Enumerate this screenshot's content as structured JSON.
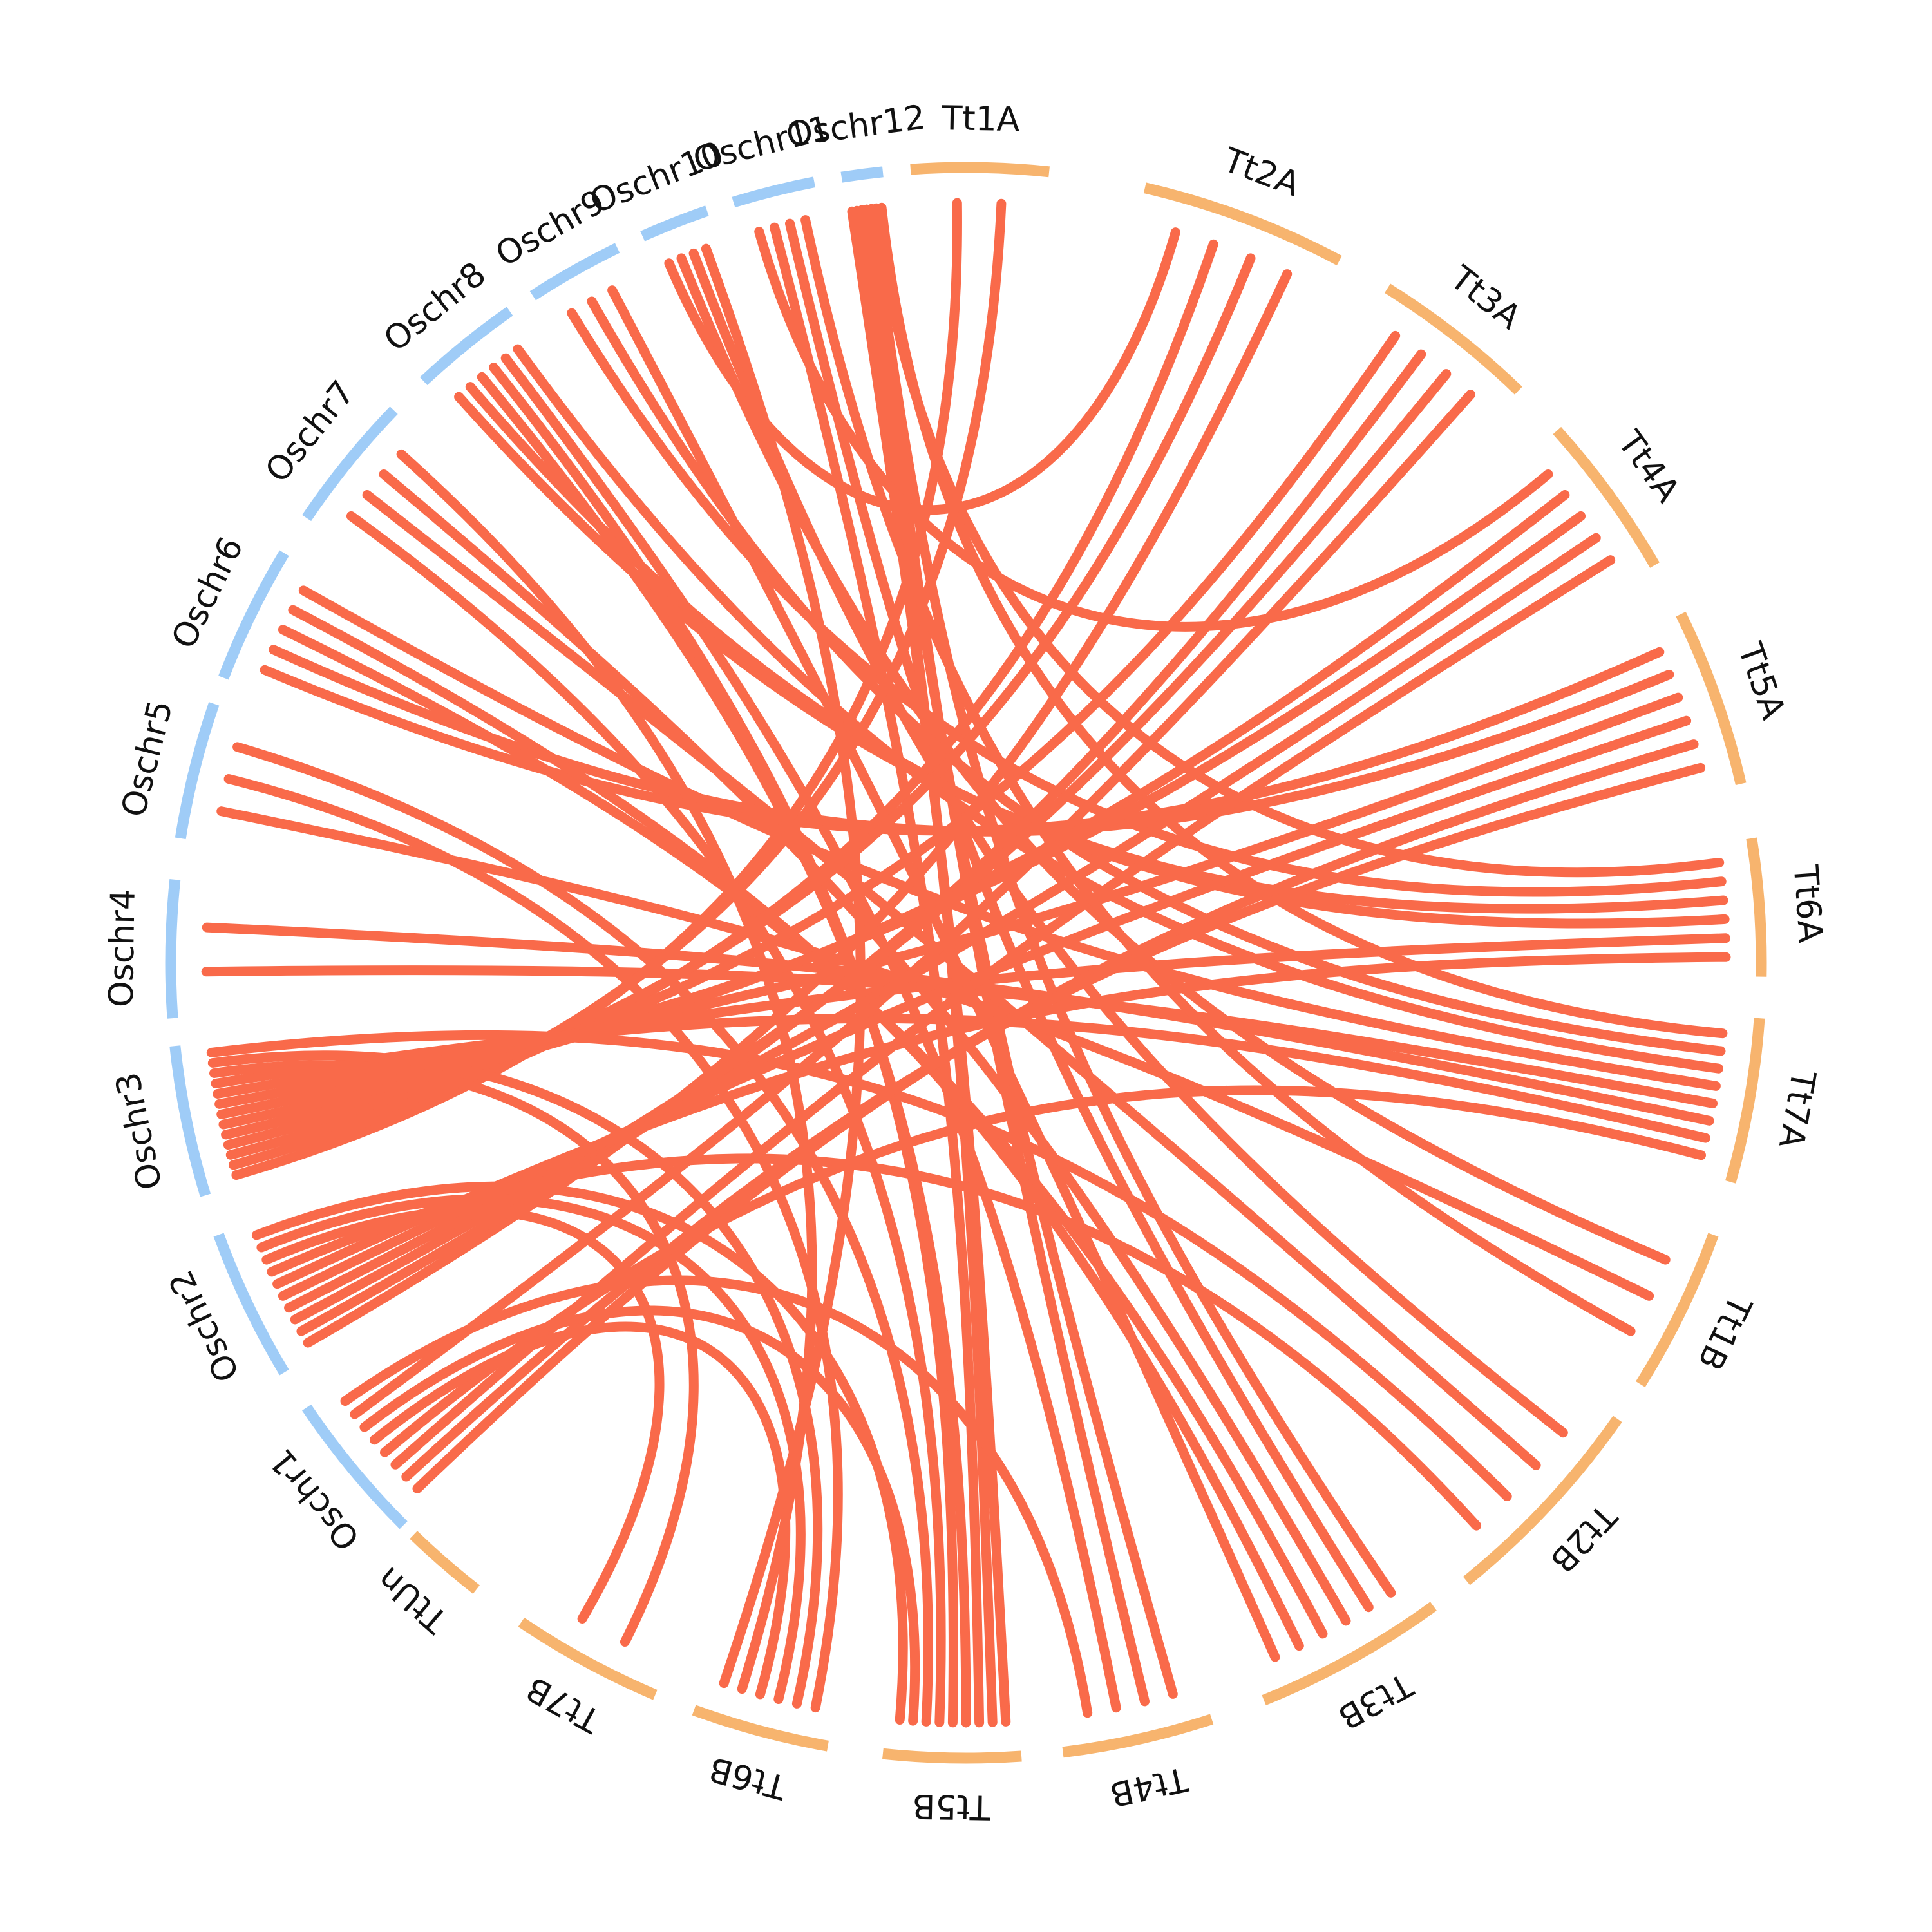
{
  "chart_data": {
    "type": "circos",
    "colors": {
      "rice": "#9fccf7",
      "wheat": "#f7b46e",
      "link": "#f96a4a",
      "label": "#111111"
    },
    "segments": [
      {
        "id": "Tt1A",
        "label": "Tt1A",
        "group": "wheat"
      },
      {
        "id": "Tt2A",
        "label": "Tt2A",
        "group": "wheat"
      },
      {
        "id": "Tt3A",
        "label": "Tt3A",
        "group": "wheat"
      },
      {
        "id": "Tt4A",
        "label": "Tt4A",
        "group": "wheat"
      },
      {
        "id": "Tt5A",
        "label": "Tt5A",
        "group": "wheat"
      },
      {
        "id": "Tt6A",
        "label": "Tt6A",
        "group": "wheat"
      },
      {
        "id": "Tt7A",
        "label": "Tt7A",
        "group": "wheat"
      },
      {
        "id": "Tt1B",
        "label": "Tt1B",
        "group": "wheat"
      },
      {
        "id": "Tt2B",
        "label": "Tt2B",
        "group": "wheat"
      },
      {
        "id": "Tt3B",
        "label": "Tt3B",
        "group": "wheat"
      },
      {
        "id": "Tt4B",
        "label": "Tt4B",
        "group": "wheat"
      },
      {
        "id": "Tt5B",
        "label": "Tt5B",
        "group": "wheat"
      },
      {
        "id": "Tt6B",
        "label": "Tt6B",
        "group": "wheat"
      },
      {
        "id": "Tt7B",
        "label": "Tt7B",
        "group": "wheat"
      },
      {
        "id": "TtUn",
        "label": "TtUn",
        "group": "wheat"
      },
      {
        "id": "Oschr1",
        "label": "Oschr1",
        "group": "rice"
      },
      {
        "id": "Oschr2",
        "label": "Oschr2",
        "group": "rice"
      },
      {
        "id": "Oschr3",
        "label": "Oschr3",
        "group": "rice"
      },
      {
        "id": "Oschr4",
        "label": "Oschr4",
        "group": "rice"
      },
      {
        "id": "Oschr5",
        "label": "Oschr5",
        "group": "rice"
      },
      {
        "id": "Oschr6",
        "label": "Oschr6",
        "group": "rice"
      },
      {
        "id": "Oschr7",
        "label": "Oschr7",
        "group": "rice"
      },
      {
        "id": "Oschr8",
        "label": "Oschr8",
        "group": "rice"
      },
      {
        "id": "Oschr9",
        "label": "Oschr9",
        "group": "rice"
      },
      {
        "id": "Oschr10",
        "label": "Oschr10",
        "group": "rice"
      },
      {
        "id": "Oschr11",
        "label": "Oschr11",
        "group": "rice"
      },
      {
        "id": "Oschr12",
        "label": "Oschr12",
        "group": "rice"
      }
    ],
    "links": [
      {
        "from": "Oschr12",
        "to": "Tt5B"
      },
      {
        "from": "Oschr12",
        "to": "Tt5B"
      },
      {
        "from": "Oschr12",
        "to": "Tt4B"
      },
      {
        "from": "Oschr12",
        "to": "Tt4B"
      },
      {
        "from": "Oschr12",
        "to": "Tt3B"
      },
      {
        "from": "Oschr12",
        "to": "Tt6A"
      },
      {
        "from": "Oschr12",
        "to": "Tt7A"
      },
      {
        "from": "Oschr11",
        "to": "Tt4A"
      },
      {
        "from": "Oschr11",
        "to": "Tt5B"
      },
      {
        "from": "Oschr11",
        "to": "Tt3B"
      },
      {
        "from": "Oschr10",
        "to": "Tt2A"
      },
      {
        "from": "Oschr10",
        "to": "Tt1B"
      },
      {
        "from": "Oschr10",
        "to": "Tt2B"
      },
      {
        "from": "Oschr9",
        "to": "Tt6A"
      },
      {
        "from": "Oschr9",
        "to": "Tt7A"
      },
      {
        "from": "Oschr8",
        "to": "Tt6A"
      },
      {
        "from": "Oschr8",
        "to": "Tt6A"
      },
      {
        "from": "Oschr8",
        "to": "Tt5B"
      },
      {
        "from": "Oschr8",
        "to": "Tt5B"
      },
      {
        "from": "Oschr8",
        "to": "Tt4B"
      },
      {
        "from": "Oschr8",
        "to": "Tt7A"
      },
      {
        "from": "Oschr7",
        "to": "Tt5B"
      },
      {
        "from": "Oschr7",
        "to": "Tt2B"
      },
      {
        "from": "Oschr7",
        "to": "Tt3B"
      },
      {
        "from": "Oschr6",
        "to": "Tt5A"
      },
      {
        "from": "Oschr6",
        "to": "Tt5A"
      },
      {
        "from": "Oschr6",
        "to": "Tt3B"
      },
      {
        "from": "Oschr6",
        "to": "Tt3B"
      },
      {
        "from": "Oschr6",
        "to": "Tt7A"
      },
      {
        "from": "Oschr5",
        "to": "Tt1B"
      },
      {
        "from": "Oschr5",
        "to": "Tt6B"
      },
      {
        "from": "Oschr5",
        "to": "Tt5B"
      },
      {
        "from": "Oschr4",
        "to": "Tt7A"
      },
      {
        "from": "Oschr4",
        "to": "Tt7A"
      },
      {
        "from": "Oschr3",
        "to": "Tt1A"
      },
      {
        "from": "Oschr3",
        "to": "Tt1A"
      },
      {
        "from": "Oschr3",
        "to": "Tt2A"
      },
      {
        "from": "Oschr3",
        "to": "Tt2A"
      },
      {
        "from": "Oschr3",
        "to": "Tt3A"
      },
      {
        "from": "Oschr3",
        "to": "Tt4A"
      },
      {
        "from": "Oschr3",
        "to": "Tt4A"
      },
      {
        "from": "Oschr3",
        "to": "Tt5A"
      },
      {
        "from": "Oschr3",
        "to": "Tt6A"
      },
      {
        "from": "Oschr3",
        "to": "Tt7A"
      },
      {
        "from": "Oschr3",
        "to": "Tt7B"
      },
      {
        "from": "Oschr3",
        "to": "Tt6B"
      },
      {
        "from": "Oschr3",
        "to": "Tt2B"
      },
      {
        "from": "Oschr2",
        "to": "Tt2A"
      },
      {
        "from": "Oschr2",
        "to": "Tt3A"
      },
      {
        "from": "Oschr2",
        "to": "Tt3A"
      },
      {
        "from": "Oschr2",
        "to": "Tt4A"
      },
      {
        "from": "Oschr2",
        "to": "Tt5A"
      },
      {
        "from": "Oschr2",
        "to": "Tt6A"
      },
      {
        "from": "Oschr2",
        "to": "Tt2B"
      },
      {
        "from": "Oschr2",
        "to": "Tt7B"
      },
      {
        "from": "Oschr2",
        "to": "Tt6B"
      },
      {
        "from": "Oschr1",
        "to": "Tt5A"
      },
      {
        "from": "Oschr1",
        "to": "Tt5A"
      },
      {
        "from": "Oschr1",
        "to": "Tt4A"
      },
      {
        "from": "Oschr1",
        "to": "Tt7A"
      },
      {
        "from": "Oschr1",
        "to": "Tt6B"
      },
      {
        "from": "Oschr1",
        "to": "Tt5B"
      },
      {
        "from": "Oschr1",
        "to": "Tt3A"
      },
      {
        "from": "Oschr7",
        "to": "Tt6B"
      },
      {
        "from": "Oschr10",
        "to": "Tt6B"
      },
      {
        "from": "Oschr11",
        "to": "Tt1B"
      },
      {
        "from": "Oschr9",
        "to": "Tt3B"
      },
      {
        "from": "Oschr2",
        "to": "Tt5B"
      },
      {
        "from": "Oschr1",
        "to": "Tt4B"
      }
    ]
  }
}
